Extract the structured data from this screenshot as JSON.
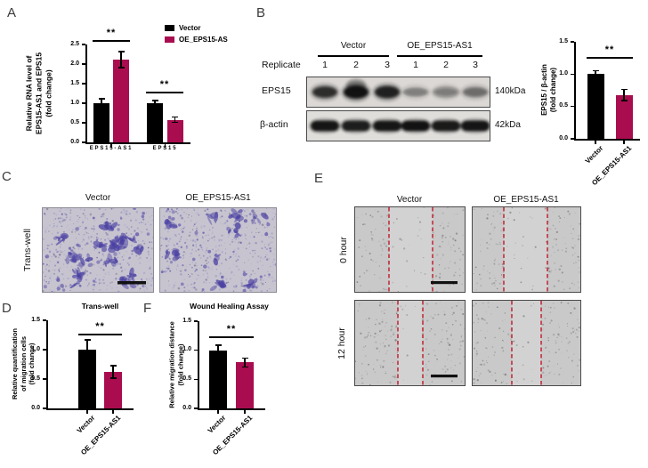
{
  "colors": {
    "bar_black": "#000000",
    "bar_crimson": "#A90D4F",
    "wound_line": "#C02E3C"
  },
  "panel_letters": {
    "A": "A",
    "B": "B",
    "C": "C",
    "D": "D",
    "E": "E",
    "F": "F"
  },
  "panelB_blot": {
    "replicate_label": "Replicate",
    "groups": [
      "Vector",
      "OE_EPS15-AS1"
    ],
    "lanes": [
      "1",
      "2",
      "3",
      "1",
      "2",
      "3"
    ],
    "rows": [
      {
        "label": "EPS15",
        "mw": "140kDa"
      },
      {
        "label": "β-actin",
        "mw": "42kDa"
      }
    ]
  },
  "panelC": {
    "row_label": "Trans-well",
    "columns": [
      "Vector",
      "OE_EPS15-AS1"
    ]
  },
  "panelE": {
    "rows": [
      "0 hour",
      "12 hour"
    ],
    "columns": [
      "Vector",
      "OE_EPS15-AS1"
    ]
  },
  "chart_data": [
    {
      "id": "chartA",
      "type": "bar",
      "title": "",
      "ylabel_lines": [
        "Relative RNA level of",
        "EPS15-AS1 and EPS15",
        "(fold change)"
      ],
      "ylim": [
        0,
        2.5
      ],
      "ytick_labels": [
        "0.0",
        "0.5",
        "1.0",
        "1.5",
        "2.0",
        "2.5"
      ],
      "categories": [
        "EPS15-AS1",
        "EPS15"
      ],
      "series": [
        {
          "name": "Vector",
          "color": "#000000",
          "values": [
            1.0,
            1.0
          ],
          "errors": [
            0.12,
            0.08
          ]
        },
        {
          "name": "OE_EPS15-AS",
          "color": "#A90D4F",
          "values": [
            2.12,
            0.58
          ],
          "errors": [
            0.21,
            0.07
          ]
        }
      ],
      "significance": [
        {
          "category": "EPS15-AS1",
          "label": "**"
        },
        {
          "category": "EPS15",
          "label": "**"
        }
      ],
      "legend_position": "top-right",
      "grid": false
    },
    {
      "id": "chartB",
      "type": "bar",
      "title": "",
      "ylabel_lines": [
        "EPS15 / β-actin",
        "(fold change)"
      ],
      "ylim": [
        0,
        1.5
      ],
      "ytick_labels": [
        "0.0",
        "0.5",
        "1.0",
        "1.5"
      ],
      "bars": [
        {
          "label": "Vector",
          "color": "#000000",
          "value": 1.0,
          "error": 0.06
        },
        {
          "label": "OE_EPS15-AS1",
          "color": "#A90D4F",
          "value": 0.68,
          "error": 0.09
        }
      ],
      "significance": {
        "label": "**"
      },
      "grid": false
    },
    {
      "id": "chartD",
      "type": "bar",
      "title": "Trans-well",
      "ylabel_lines": [
        "Relative quantification",
        "of migration cells",
        "(fold change)"
      ],
      "ylim": [
        0,
        1.5
      ],
      "ytick_labels": [
        "0.0",
        "0.5",
        "1.0",
        "1.5"
      ],
      "bars": [
        {
          "label": "Vector",
          "color": "#000000",
          "value": 1.0,
          "error": 0.17
        },
        {
          "label": "OE_EPS15-AS1",
          "color": "#A90D4F",
          "value": 0.62,
          "error": 0.11
        }
      ],
      "significance": {
        "label": "**"
      },
      "grid": false
    },
    {
      "id": "chartF",
      "type": "bar",
      "title": "Wound Healing Assay",
      "ylabel_lines": [
        "Relative migration distance",
        "(fold change)"
      ],
      "ylim": [
        0,
        1.5
      ],
      "ytick_labels": [
        "0.0",
        "0.5",
        "1.0",
        "1.5"
      ],
      "bars": [
        {
          "label": "Vector",
          "color": "#000000",
          "value": 1.0,
          "error": 0.09
        },
        {
          "label": "OE_EPS15-AS1",
          "color": "#A90D4F",
          "value": 0.79,
          "error": 0.08
        }
      ],
      "significance": {
        "label": "**"
      },
      "grid": false
    }
  ]
}
